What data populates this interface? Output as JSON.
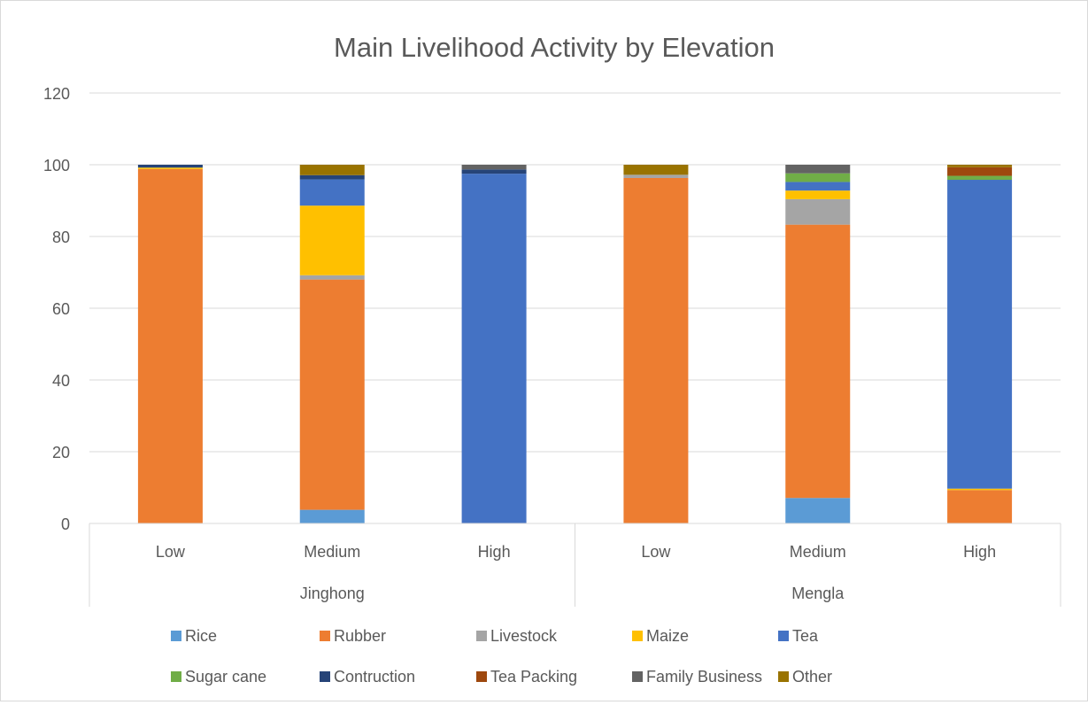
{
  "chart_data": {
    "type": "bar",
    "stacked": true,
    "title": "Main Livelihood Activity by Elevation",
    "xlabel": "",
    "ylabel": "",
    "ylim": [
      0,
      120
    ],
    "yticks": [
      "0",
      "20",
      "40",
      "60",
      "80",
      "100",
      "120"
    ],
    "grid": true,
    "legend_position": "bottom",
    "groups": [
      {
        "label": "Jinghong",
        "categories": [
          "Low",
          "Medium",
          "High"
        ]
      },
      {
        "label": "Mengla",
        "categories": [
          "Low",
          "Medium",
          "High"
        ]
      }
    ],
    "categories": [
      "Low",
      "Medium",
      "High",
      "Low",
      "Medium",
      "High"
    ],
    "series": [
      {
        "name": "Rice",
        "color": "#5B9BD5",
        "values": [
          0,
          3.8,
          0,
          0,
          7.1,
          0
        ]
      },
      {
        "name": "Rubber",
        "color": "#ED7D31",
        "values": [
          98.8,
          64.2,
          0,
          96.3,
          76.2,
          9.3
        ]
      },
      {
        "name": "Livestock",
        "color": "#A5A5A5",
        "values": [
          0,
          1.2,
          0,
          0.9,
          7.1,
          0
        ]
      },
      {
        "name": "Maize",
        "color": "#FFC000",
        "values": [
          0.4,
          19.4,
          0,
          0,
          2.4,
          0.4
        ]
      },
      {
        "name": "Tea",
        "color": "#4472C4",
        "values": [
          0,
          7.3,
          97.5,
          0,
          2.4,
          86.1
        ]
      },
      {
        "name": "Sugar cane",
        "color": "#70AD47",
        "values": [
          0,
          0,
          0,
          0,
          2.4,
          1.1
        ]
      },
      {
        "name": "Contruction",
        "color": "#264478",
        "values": [
          0.8,
          1.2,
          1.2,
          0,
          0,
          0
        ]
      },
      {
        "name": "Tea Packing",
        "color": "#9E480E",
        "values": [
          0,
          0,
          0,
          0,
          0,
          2.4
        ]
      },
      {
        "name": "Family Business",
        "color": "#636363",
        "values": [
          0,
          0,
          1.3,
          0,
          2.4,
          0
        ]
      },
      {
        "name": "Other",
        "color": "#997300",
        "values": [
          0,
          2.9,
          0,
          2.8,
          0,
          0.7
        ]
      }
    ]
  }
}
